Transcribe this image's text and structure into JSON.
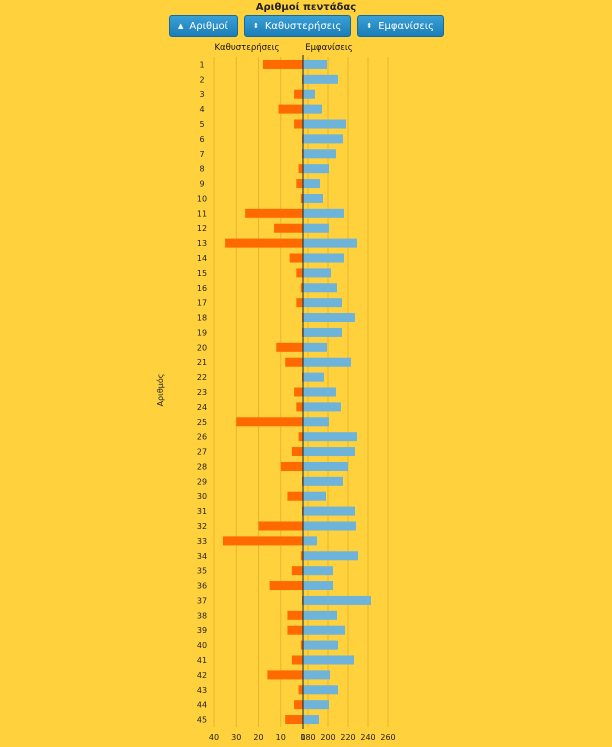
{
  "title": "Αριθμοί πεντάδας",
  "buttons": [
    {
      "label": "Αριθμοί",
      "icon": "sort-ascending-icon"
    },
    {
      "label": "Καθυστερήσεις",
      "icon": "sort-both-icon"
    },
    {
      "label": "Εμφανίσεις",
      "icon": "sort-both-icon"
    }
  ],
  "colors": {
    "background": "#FFD13D",
    "delays": "#FF6A00",
    "appearances": "#6EB3DA",
    "grid": "#E8B62E",
    "axis": "#222222"
  },
  "chart_data": {
    "type": "bar",
    "ylabel": "Αριθμός",
    "left_header": "Καθυστερήσεις",
    "right_header": "Εμφανίσεις",
    "categories": [
      "1",
      "2",
      "3",
      "4",
      "5",
      "6",
      "7",
      "8",
      "9",
      "10",
      "11",
      "12",
      "13",
      "14",
      "15",
      "16",
      "17",
      "18",
      "19",
      "20",
      "21",
      "22",
      "23",
      "24",
      "25",
      "26",
      "27",
      "28",
      "29",
      "30",
      "31",
      "32",
      "33",
      "34",
      "35",
      "36",
      "37",
      "38",
      "39",
      "40",
      "41",
      "42",
      "43",
      "44",
      "45"
    ],
    "left_ticks": [
      "40",
      "30",
      "20",
      "10",
      "0"
    ],
    "right_ticks": [
      "180",
      "200",
      "220",
      "240",
      "260"
    ],
    "left_range": [
      0,
      40
    ],
    "right_range": [
      175,
      265
    ],
    "series": [
      {
        "name": "Καθυστερήσεις",
        "values": [
          18,
          0,
          4,
          11,
          4,
          0,
          0,
          2,
          3,
          1,
          26,
          13,
          35,
          6,
          3,
          1,
          3,
          0,
          0,
          12,
          8,
          0,
          4,
          3,
          30,
          2,
          5,
          10,
          0,
          7,
          0,
          20,
          36,
          1,
          5,
          15,
          0,
          7,
          7,
          1,
          5,
          16,
          2,
          4,
          8
        ]
      },
      {
        "name": "Εμφανίσεις",
        "values": [
          199,
          210,
          187,
          194,
          218,
          215,
          208,
          201,
          192,
          195,
          216,
          201,
          229,
          216,
          203,
          209,
          214,
          227,
          214,
          199,
          223,
          196,
          208,
          213,
          201,
          229,
          227,
          220,
          215,
          198,
          227,
          228,
          189,
          230,
          205,
          205,
          243,
          209,
          217,
          210,
          226,
          202,
          210,
          201,
          191
        ]
      }
    ]
  }
}
